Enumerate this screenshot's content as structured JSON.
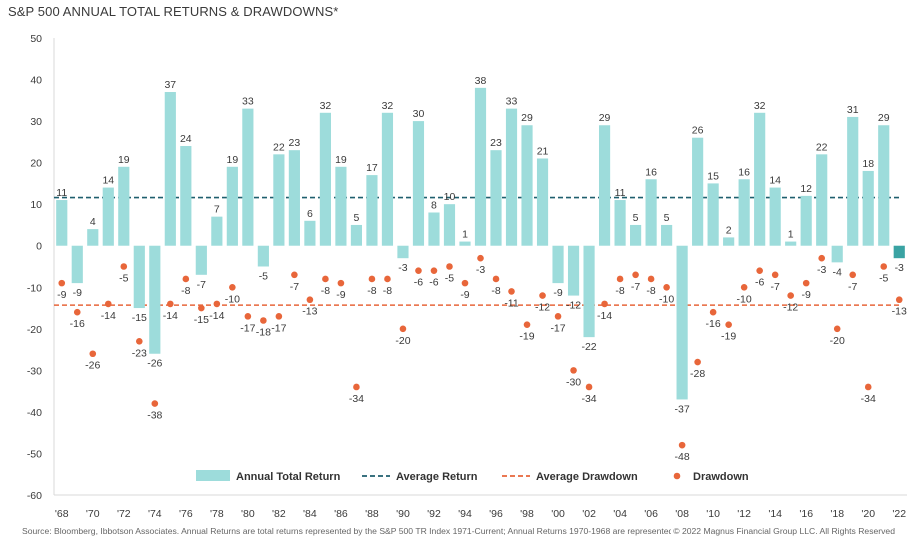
{
  "title": "S&P 500 ANNUAL TOTAL RETURNS & DRAWDOWNS*",
  "source": "Source: Bloomberg, Ibbotson Associates. Annual Returns are total returns represented by the S&P 500 TR Index 1971-Current; Annual Returns 1970-1968 are represented by the",
  "copyright": "© 2022 Magnus Financial Group LLC. All Rights Reserved",
  "colors": {
    "bar": "#9ddcdb",
    "bar_current": "#3aa3a3",
    "average_return": "#1f5f6e",
    "average_drawdown": "#e8663a",
    "drawdown": "#e8663a",
    "axis": "#d9d9d9"
  },
  "chart_data": {
    "type": "bar",
    "title": "S&P 500 ANNUAL TOTAL RETURNS & DRAWDOWNS*",
    "ylim": [
      -60,
      50
    ],
    "yticks": [
      "50",
      "40",
      "30",
      "20",
      "10",
      "0",
      "-10",
      "-20",
      "-30",
      "-40",
      "-50",
      "-60"
    ],
    "x_tick_labels": [
      "'68",
      "'70",
      "'72",
      "'74",
      "'76",
      "'78",
      "'80",
      "'82",
      "'84",
      "'86",
      "'88",
      "'90",
      "'92",
      "'94",
      "'96",
      "'98",
      "'00",
      "'02",
      "'04",
      "'06",
      "'08",
      "'10",
      "'12",
      "'14",
      "'16",
      "'18",
      "'20",
      "'22"
    ],
    "years": [
      1968,
      1969,
      1970,
      1971,
      1972,
      1973,
      1974,
      1975,
      1976,
      1977,
      1978,
      1979,
      1980,
      1981,
      1982,
      1983,
      1984,
      1985,
      1986,
      1987,
      1988,
      1989,
      1990,
      1991,
      1992,
      1993,
      1994,
      1995,
      1996,
      1997,
      1998,
      1999,
      2000,
      2001,
      2002,
      2003,
      2004,
      2005,
      2006,
      2007,
      2008,
      2009,
      2010,
      2011,
      2012,
      2013,
      2014,
      2015,
      2016,
      2017,
      2018,
      2019,
      2020,
      2021,
      2022
    ],
    "series": [
      {
        "name": "Annual Total Return",
        "values": [
          11,
          -9,
          4,
          14,
          19,
          -15,
          -26,
          37,
          24,
          -7,
          7,
          19,
          33,
          -5,
          22,
          23,
          6,
          32,
          19,
          5,
          17,
          32,
          -3,
          30,
          8,
          10,
          1,
          38,
          23,
          33,
          29,
          21,
          -9,
          -12,
          -22,
          29,
          11,
          5,
          16,
          5,
          -37,
          26,
          15,
          2,
          16,
          32,
          14,
          1,
          12,
          22,
          -4,
          31,
          18,
          29,
          -3
        ]
      },
      {
        "name": "Drawdown",
        "values": [
          -9,
          -16,
          -26,
          -14,
          -5,
          -23,
          -38,
          -14,
          -8,
          -15,
          -14,
          -10,
          -17,
          -18,
          -17,
          -7,
          -13,
          -8,
          -9,
          -34,
          -8,
          -8,
          -20,
          -6,
          -6,
          -5,
          -9,
          -3,
          -8,
          -11,
          -19,
          -12,
          -17,
          -30,
          -34,
          -14,
          -8,
          -7,
          -8,
          -10,
          -48,
          -28,
          -16,
          -19,
          -10,
          -6,
          -7,
          -12,
          -9,
          -3,
          -20,
          -7,
          -34,
          -5,
          -13
        ]
      }
    ],
    "average_return": 11.6,
    "average_drawdown": -14.3,
    "legend": {
      "position": "bottom",
      "items": [
        "Annual Total Return",
        "Average Return",
        "Average Drawdown",
        "Drawdown"
      ]
    },
    "grid": false
  }
}
